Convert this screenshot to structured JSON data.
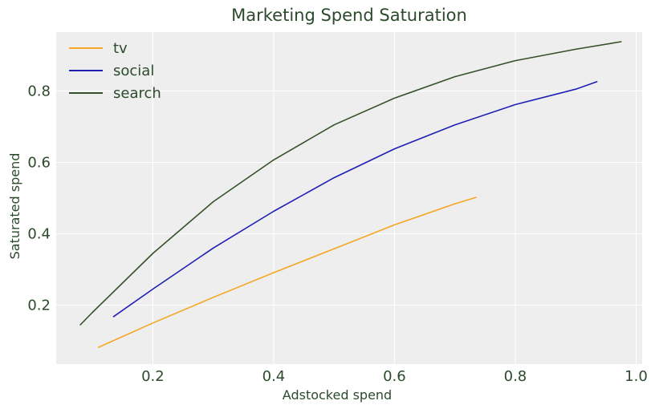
{
  "chart_data": {
    "type": "line",
    "title": "Marketing Spend Saturation",
    "xlabel": "Adstocked spend",
    "ylabel": "Saturated spend",
    "xlim": [
      0.04,
      1.01
    ],
    "ylim": [
      0.035,
      0.965
    ],
    "xticks": [
      0.2,
      0.4,
      0.6,
      0.8,
      1.0
    ],
    "xtick_labels": [
      "0.2",
      "0.4",
      "0.6",
      "0.8",
      "1.0"
    ],
    "yticks": [
      0.2,
      0.4,
      0.6,
      0.8
    ],
    "ytick_labels": [
      "0.2",
      "0.4",
      "0.6",
      "0.8"
    ],
    "grid": true,
    "legend_position": "top-left",
    "colors": {
      "background": "#eeeeee",
      "grid": "#ffffff",
      "text": "#2c4a2c"
    },
    "series": [
      {
        "name": "tv",
        "color": "#f5a623",
        "x": [
          0.11,
          0.2,
          0.3,
          0.4,
          0.5,
          0.6,
          0.7,
          0.735
        ],
        "y": [
          0.082,
          0.15,
          0.222,
          0.291,
          0.358,
          0.425,
          0.484,
          0.502
        ]
      },
      {
        "name": "social",
        "color": "#1f1fb4",
        "x": [
          0.135,
          0.2,
          0.3,
          0.4,
          0.5,
          0.6,
          0.7,
          0.8,
          0.9,
          0.935
        ],
        "y": [
          0.168,
          0.245,
          0.36,
          0.463,
          0.557,
          0.638,
          0.705,
          0.762,
          0.805,
          0.826
        ]
      },
      {
        "name": "search",
        "color": "#36502a",
        "x": [
          0.08,
          0.1,
          0.2,
          0.3,
          0.4,
          0.5,
          0.6,
          0.7,
          0.8,
          0.9,
          0.975
        ],
        "y": [
          0.145,
          0.18,
          0.345,
          0.49,
          0.607,
          0.705,
          0.78,
          0.84,
          0.885,
          0.917,
          0.938
        ]
      }
    ]
  }
}
